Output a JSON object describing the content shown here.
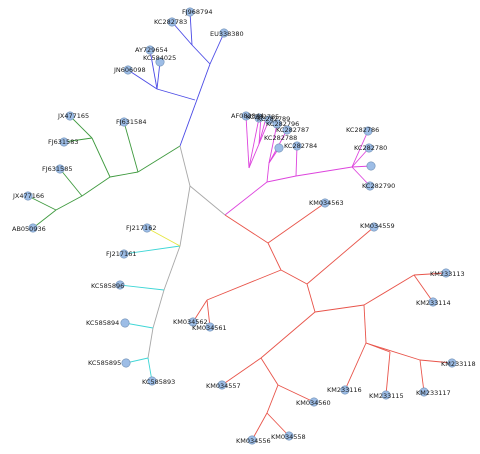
{
  "diagram": {
    "type": "unrooted-phylogenetic-tree",
    "colors": {
      "blue_clade": "#4a4ae6",
      "green_clade": "#3f9a3f",
      "magenta_clade": "#dd44dd",
      "red_clade": "#e8544a",
      "gray_backbone": "#a8a8a8",
      "cyan_clade": "#3ed6d6",
      "yellow_branch": "#e6e640",
      "node_fill": "#9dbde6",
      "node_stroke": "#6f8fb4"
    },
    "taxa": [
      "FJ968794",
      "KC282783",
      "EU338380",
      "AY729654",
      "KC584025",
      "JN606098",
      "JX477165",
      "FJ631584",
      "FJ631583",
      "FJ631585",
      "JX477166",
      "AB050936",
      "AF082844",
      "KC282785",
      "KC282789",
      "KC282796",
      "KC282787",
      "KC282788",
      "KC282784",
      "KC282786",
      "KC282780",
      "KC282790",
      "KM034563",
      "KM034559",
      "FJ217162",
      "FJ217161",
      "KC585896",
      "KC585894",
      "KC585895",
      "KC585893",
      "KM034562",
      "KM034561",
      "KM233113",
      "KM233114",
      "KM034557",
      "KM034560",
      "KM233116",
      "KM233115",
      "KM233117",
      "KM233118",
      "KM034556",
      "KM034558"
    ]
  }
}
